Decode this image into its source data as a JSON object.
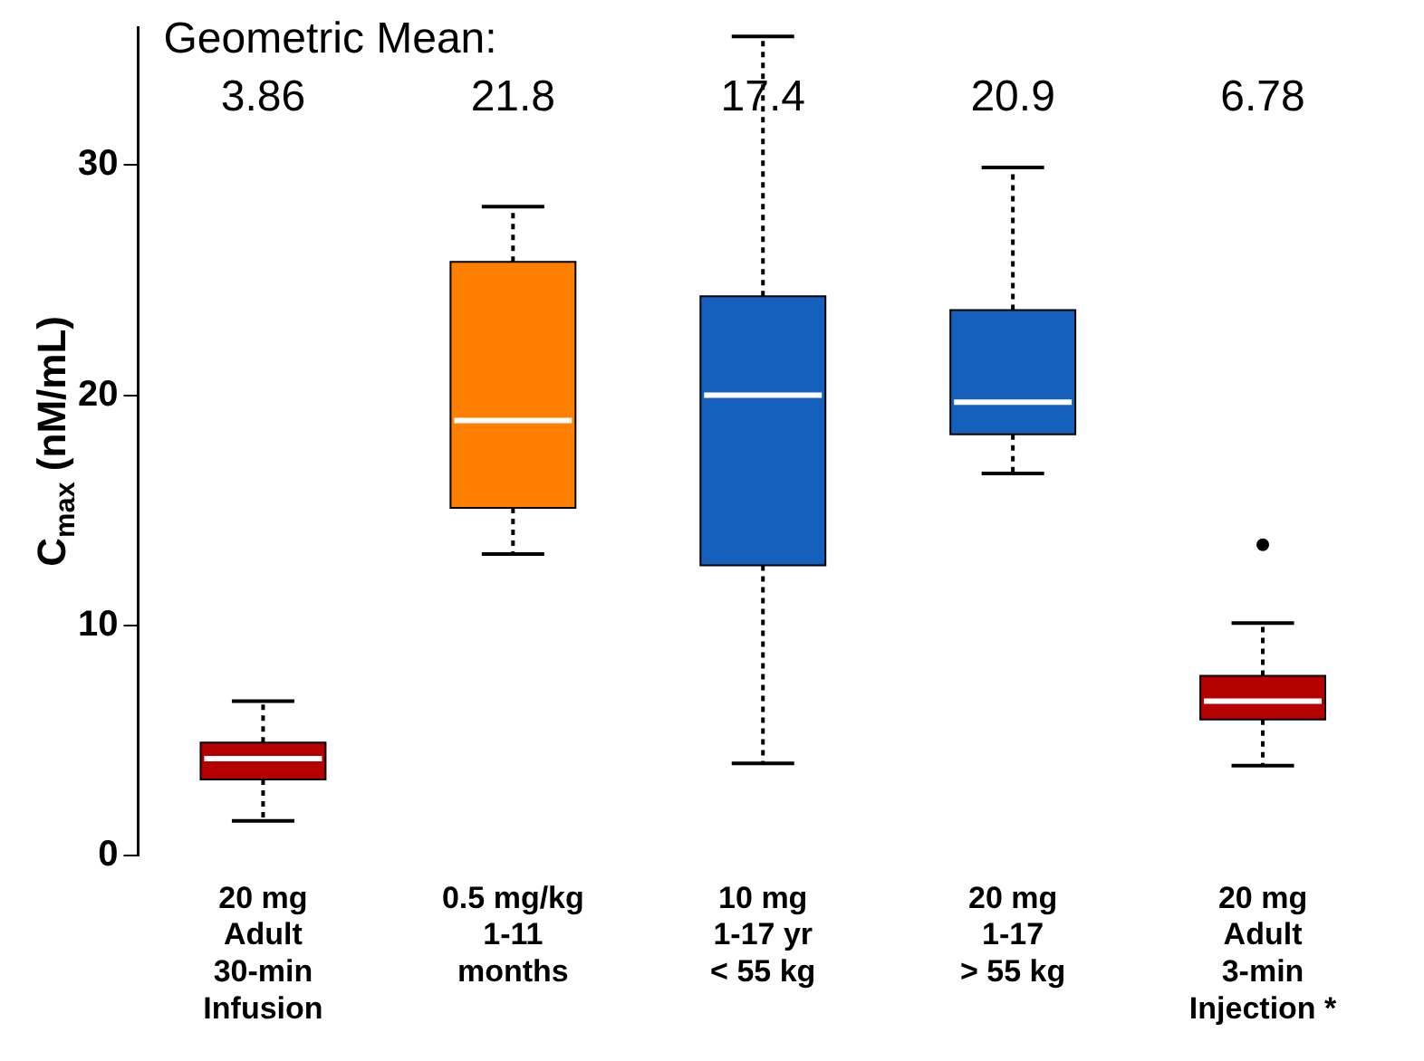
{
  "chart_data": {
    "type": "box",
    "ylabel": "C$_{max}$ (nM/mL)",
    "categories": [
      "20 mg\nAdult\n30-min\nInfusion",
      "0.5 mg/kg\n1-11\nmonths",
      "10 mg\n1-17 yr\n< 55 kg",
      "20 mg\n1-17\n> 55 kg",
      "20 mg\nAdult\n3-min\nInjection *"
    ],
    "colors": [
      "#b50000",
      "#ff7f00",
      "#1560bd",
      "#1560bd",
      "#b50000"
    ],
    "boxes": [
      {
        "low": 1.5,
        "q1": 3.3,
        "median": 4.2,
        "q3": 4.9,
        "high": 6.7
      },
      {
        "low": 13.1,
        "q1": 15.1,
        "median": 18.9,
        "q3": 25.8,
        "high": 28.2
      },
      {
        "low": 4.0,
        "q1": 12.6,
        "median": 20.0,
        "q3": 24.3,
        "high": 35.6
      },
      {
        "low": 16.6,
        "q1": 18.3,
        "median": 19.7,
        "q3": 23.7,
        "high": 29.9
      },
      {
        "low": 3.9,
        "q1": 5.9,
        "median": 6.7,
        "q3": 7.8,
        "high": 10.1,
        "outliers": [
          13.5
        ]
      }
    ],
    "annotations": [
      "Geometric Mean:",
      "3.86",
      "21.8",
      "17.4",
      "20.9",
      "6.78"
    ],
    "ylim": [
      0,
      36
    ],
    "yticks": [
      0,
      10,
      20,
      30
    ],
    "grid": false,
    "legend": false
  }
}
